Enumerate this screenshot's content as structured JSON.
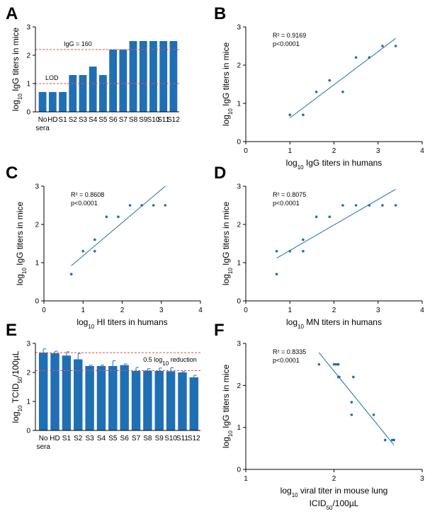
{
  "colors": {
    "bar": "#1f6fb5",
    "point": "#1f6fb5",
    "line": "#1f6fb5",
    "ref_line": "#e0534f",
    "axis": "#000000"
  },
  "chart_data": [
    {
      "id": "A",
      "panel_letter": "A",
      "type": "bar",
      "ylabel": "log10 IgG titers in mice",
      "ylim": [
        0,
        3
      ],
      "yticks": [
        "0",
        "1",
        "2",
        "3"
      ],
      "categories": [
        "No sera",
        "HD",
        "S1",
        "S2",
        "S3",
        "S4",
        "S5",
        "S6",
        "S7",
        "S8",
        "S9",
        "S10",
        "S11",
        "S12"
      ],
      "category_labels": [
        "No\nsera",
        "HD",
        "S1",
        "S2",
        "S3",
        "S4",
        "S5",
        "S6",
        "S7",
        "S8",
        "S9",
        "S10",
        "S11",
        "S12"
      ],
      "values": [
        0.7,
        0.7,
        0.7,
        1.3,
        1.3,
        1.6,
        1.3,
        2.2,
        2.2,
        2.5,
        2.5,
        2.5,
        2.5,
        2.5
      ],
      "reference_lines": [
        {
          "value": 2.2,
          "label": "IgG = 160"
        },
        {
          "value": 1.0,
          "label": "LOD"
        }
      ]
    },
    {
      "id": "B",
      "panel_letter": "B",
      "type": "scatter",
      "xlabel": "log10 IgG titers in humans",
      "ylabel": "log10 IgG titers in mice",
      "xlim": [
        0,
        4
      ],
      "ylim": [
        0,
        3
      ],
      "xticks": [
        "0",
        "1",
        "2",
        "3",
        "4"
      ],
      "yticks": [
        "0",
        "1",
        "2",
        "3"
      ],
      "points": [
        [
          1.0,
          0.7
        ],
        [
          1.3,
          0.7
        ],
        [
          1.6,
          1.3
        ],
        [
          1.9,
          1.6
        ],
        [
          2.2,
          1.3
        ],
        [
          2.5,
          2.2
        ],
        [
          2.8,
          2.2
        ],
        [
          3.1,
          2.5
        ],
        [
          3.4,
          2.5
        ]
      ],
      "fit_line": [
        [
          1.0,
          0.62
        ],
        [
          3.4,
          2.7
        ]
      ],
      "r2_text": "R² = 0.9169",
      "p_text": "p<0.0001"
    },
    {
      "id": "C",
      "panel_letter": "C",
      "type": "scatter",
      "xlabel": "log10 HI titers in humans",
      "ylabel": "log10 IgG titers in mice",
      "xlim": [
        0,
        4
      ],
      "ylim": [
        0,
        3
      ],
      "xticks": [
        "0",
        "1",
        "2",
        "3",
        "4"
      ],
      "yticks": [
        "0",
        "1",
        "2",
        "3"
      ],
      "points": [
        [
          0.7,
          0.7
        ],
        [
          1.0,
          1.3
        ],
        [
          1.3,
          1.3
        ],
        [
          1.3,
          1.6
        ],
        [
          1.6,
          2.2
        ],
        [
          1.9,
          2.2
        ],
        [
          2.2,
          2.5
        ],
        [
          2.5,
          2.5
        ],
        [
          2.8,
          2.5
        ],
        [
          3.1,
          2.5
        ]
      ],
      "fit_line": [
        [
          0.7,
          0.92
        ],
        [
          3.1,
          3.0
        ]
      ],
      "r2_text": "R² = 0.8608",
      "p_text": "p<0.0001"
    },
    {
      "id": "D",
      "panel_letter": "D",
      "type": "scatter",
      "xlabel": "log10 MN titers in humans",
      "ylabel": "log10 IgG titers in mice",
      "xlim": [
        0,
        4
      ],
      "ylim": [
        0,
        3
      ],
      "xticks": [
        "0",
        "1",
        "2",
        "3",
        "4"
      ],
      "yticks": [
        "0",
        "1",
        "2",
        "3"
      ],
      "points": [
        [
          0.7,
          0.7
        ],
        [
          0.7,
          1.3
        ],
        [
          1.0,
          1.3
        ],
        [
          1.3,
          1.3
        ],
        [
          1.3,
          1.6
        ],
        [
          1.6,
          2.2
        ],
        [
          1.9,
          2.2
        ],
        [
          2.2,
          2.5
        ],
        [
          2.5,
          2.5
        ],
        [
          2.8,
          2.5
        ],
        [
          3.1,
          2.5
        ],
        [
          3.4,
          2.5
        ]
      ],
      "fit_line": [
        [
          0.7,
          1.12
        ],
        [
          3.4,
          2.92
        ]
      ],
      "r2_text": "R² = 0.8075",
      "p_text": "p<0.0001"
    },
    {
      "id": "E",
      "panel_letter": "E",
      "type": "bar",
      "ylabel": "log10 TCID50/100µL",
      "ylim": [
        0,
        3
      ],
      "yticks": [
        "0",
        "1",
        "2",
        "3"
      ],
      "categories": [
        "No sera",
        "HD",
        "S1",
        "S2",
        "S3",
        "S4",
        "S5",
        "S6",
        "S7",
        "S8",
        "S9",
        "S10",
        "S11",
        "S12"
      ],
      "category_labels": [
        "No\nsera",
        "HD",
        "S1",
        "S2",
        "S3",
        "S4",
        "S5",
        "S6",
        "S7",
        "S8",
        "S9",
        "S10",
        "S11",
        "S12"
      ],
      "values": [
        2.68,
        2.66,
        2.58,
        2.45,
        2.22,
        2.22,
        2.22,
        2.25,
        2.05,
        2.06,
        2.05,
        2.04,
        2.0,
        1.83
      ],
      "errors": [
        0.13,
        0.07,
        0.13,
        0.2,
        0.03,
        0.03,
        0.18,
        0.04,
        0.12,
        0.07,
        0.1,
        0.12,
        0.03,
        0.07
      ],
      "reference_lines": [
        {
          "value": 2.68
        },
        {
          "value": 2.06
        }
      ],
      "reference_annotation": "0.5 log10 reduction"
    },
    {
      "id": "F",
      "panel_letter": "F",
      "type": "scatter",
      "xlabel": "log10 viral titer in mouse lung",
      "xlabel2": "ICID50/100µL",
      "ylabel": "log10 IgG titers in mice",
      "xlim": [
        1,
        3
      ],
      "ylim": [
        0,
        3
      ],
      "xticks": [
        "1",
        "2",
        "3"
      ],
      "yticks": [
        "0",
        "1",
        "2",
        "3"
      ],
      "points": [
        [
          1.83,
          2.5
        ],
        [
          2.0,
          2.5
        ],
        [
          2.02,
          2.5
        ],
        [
          2.04,
          2.5
        ],
        [
          2.05,
          2.5
        ],
        [
          2.05,
          2.2
        ],
        [
          2.22,
          2.2
        ],
        [
          2.06,
          2.2
        ],
        [
          2.2,
          1.6
        ],
        [
          2.2,
          1.3
        ],
        [
          2.45,
          1.3
        ],
        [
          2.58,
          0.7
        ],
        [
          2.66,
          0.7
        ],
        [
          2.68,
          0.7
        ]
      ],
      "fit_line": [
        [
          1.83,
          2.78
        ],
        [
          2.68,
          0.58
        ]
      ],
      "r2_text": "R² = 0.8335",
      "p_text": "p<0.0001"
    }
  ]
}
